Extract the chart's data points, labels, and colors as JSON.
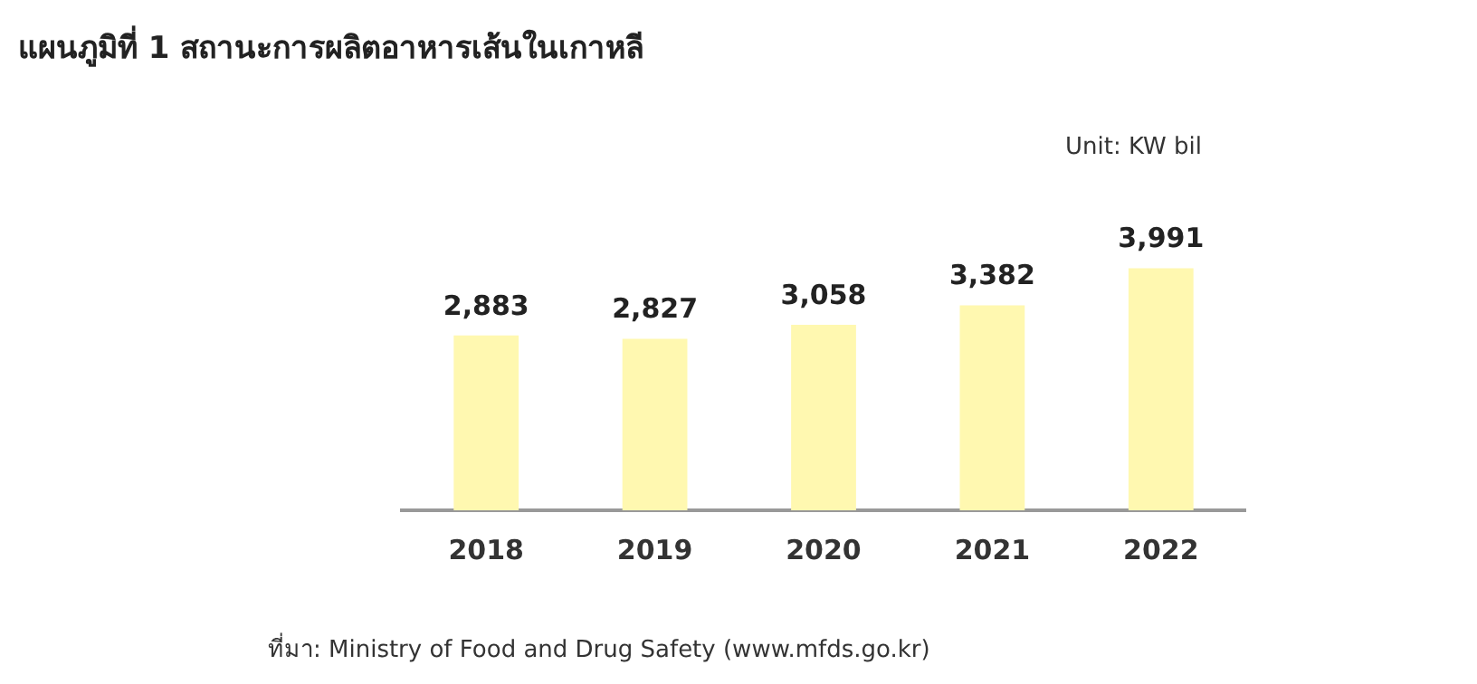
{
  "chart_data": {
    "type": "bar",
    "title": "แผนภูมิที่ 1 สถานะการผลิตอาหารเส้นในเกาหลี",
    "categories": [
      "2018",
      "2019",
      "2020",
      "2021",
      "2022"
    ],
    "values": [
      2883,
      2827,
      3058,
      3382,
      3991
    ],
    "value_labels": [
      "2,883",
      "2,827",
      "3,058",
      "3,382",
      "3,991"
    ],
    "color": "#fff8b0",
    "grid": false,
    "legend": false,
    "annotations": [
      "Unit: KW bil",
      "ที่มา: Ministry of Food and Drug Safety (www.mfds.go.kr)"
    ]
  }
}
